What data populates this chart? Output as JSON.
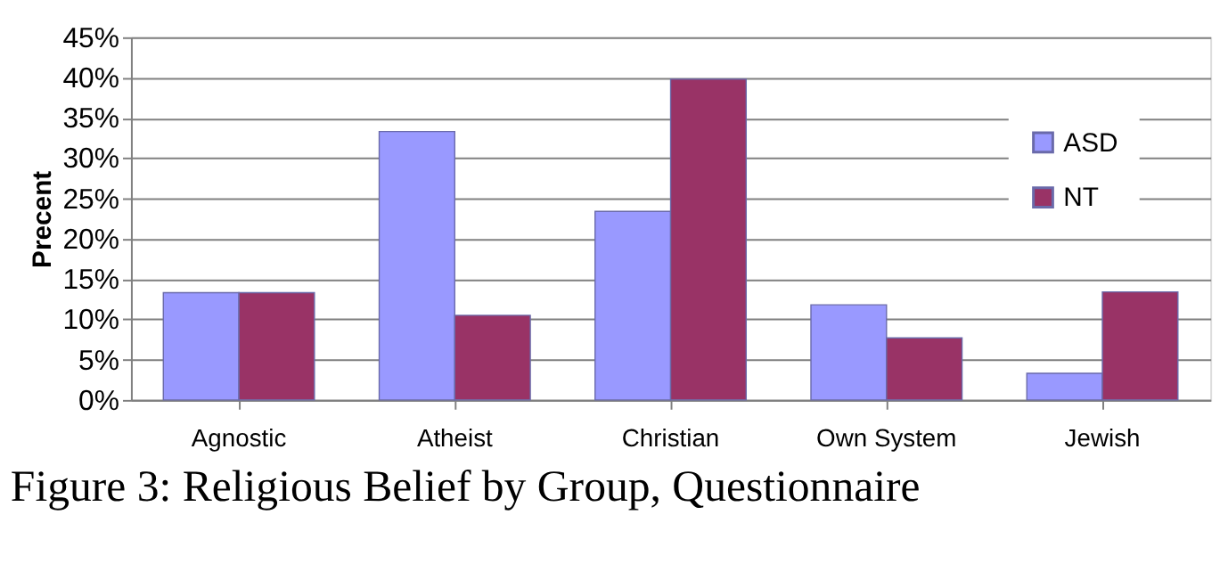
{
  "chart_data": {
    "type": "bar",
    "ylabel": "Precent",
    "categories": [
      "Agnostic",
      "Atheist",
      "Christian",
      "Own System",
      "Jewish"
    ],
    "series": [
      {
        "name": "ASD",
        "color": "#9999ff",
        "values": [
          13.3,
          33.3,
          23.4,
          11.8,
          3.3
        ]
      },
      {
        "name": "NT",
        "color": "#993366",
        "values": [
          13.3,
          10.5,
          39.8,
          7.7,
          13.4
        ]
      }
    ],
    "ylim": [
      0,
      45
    ],
    "yticks": [
      {
        "value": 0,
        "label": "0%"
      },
      {
        "value": 5,
        "label": "5%"
      },
      {
        "value": 10,
        "label": "10%"
      },
      {
        "value": 15,
        "label": "15%"
      },
      {
        "value": 20,
        "label": "20%"
      },
      {
        "value": 25,
        "label": "25%"
      },
      {
        "value": 30,
        "label": "30%"
      },
      {
        "value": 35,
        "label": "35%"
      },
      {
        "value": 40,
        "label": "40%"
      },
      {
        "value": 45,
        "label": "45%"
      }
    ],
    "grid": "y",
    "legend": "top right",
    "annotations": [
      "Figure 3: Religious Belief by Group, Questionnaire"
    ]
  }
}
